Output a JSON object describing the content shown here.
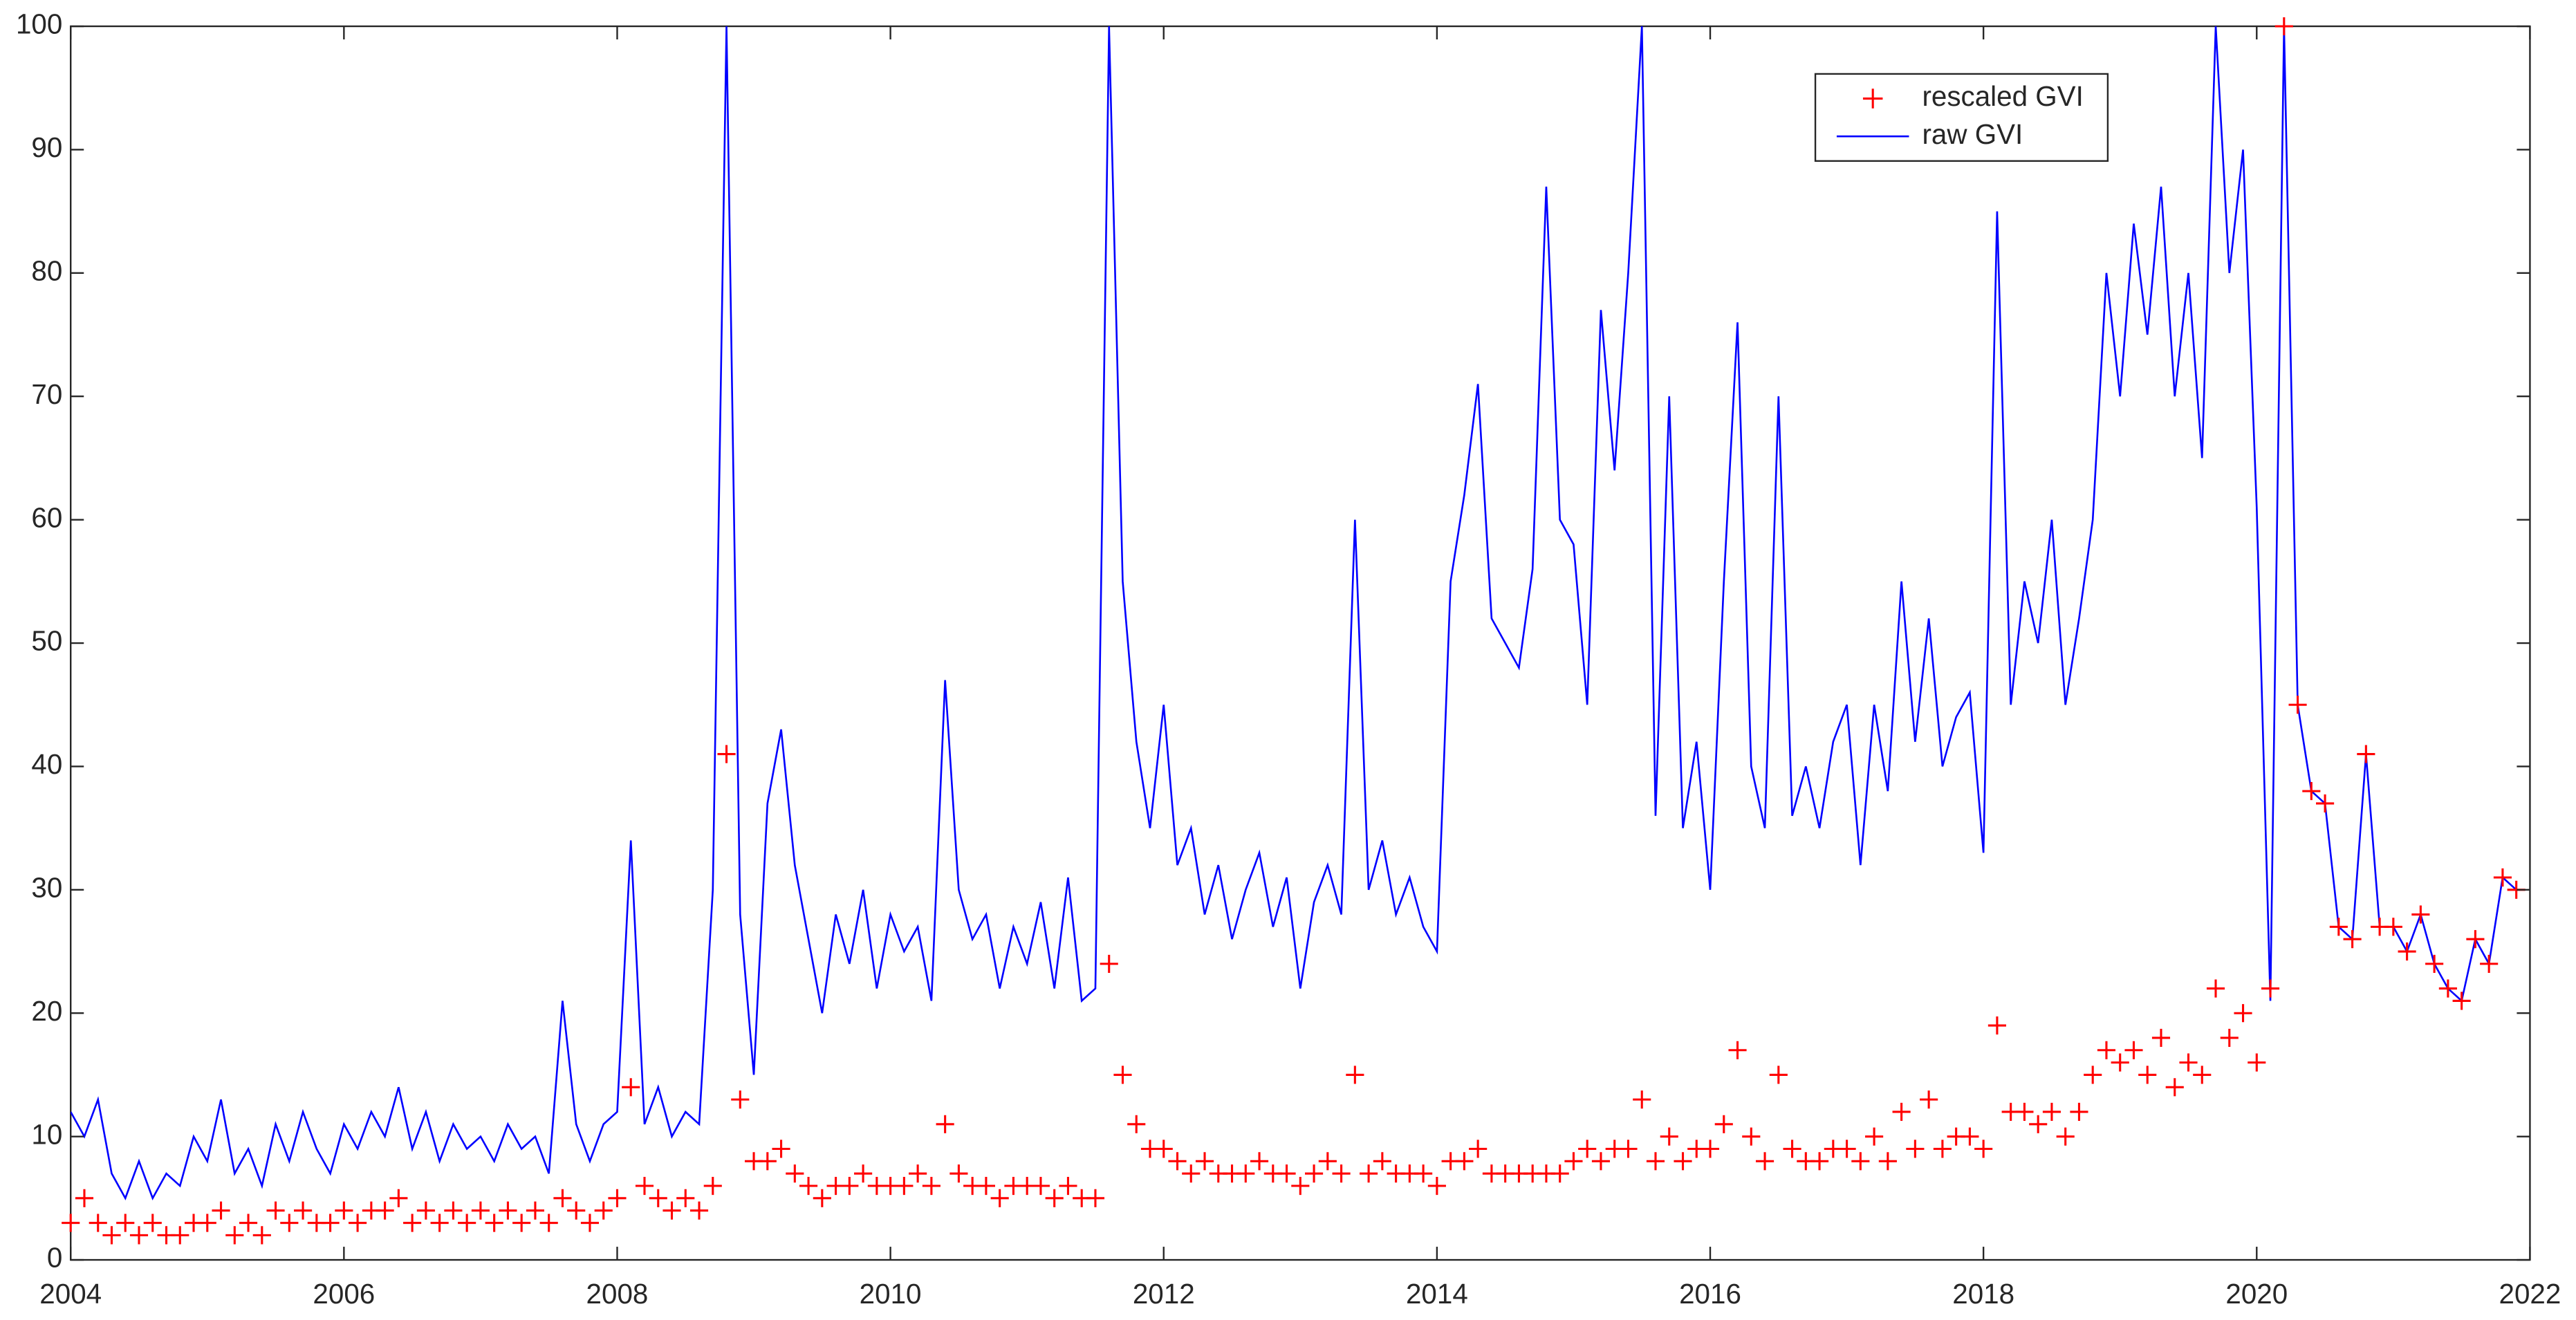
{
  "chart_data": {
    "type": "line",
    "x": [
      2004.0,
      2004.1,
      2004.2,
      2004.3,
      2004.4,
      2004.5,
      2004.6,
      2004.7,
      2004.8,
      2004.9,
      2005.0,
      2005.1,
      2005.2,
      2005.3,
      2005.4,
      2005.5,
      2005.6,
      2005.7,
      2005.8,
      2005.9,
      2006.0,
      2006.1,
      2006.2,
      2006.3,
      2006.4,
      2006.5,
      2006.6,
      2006.7,
      2006.8,
      2006.9,
      2007.0,
      2007.1,
      2007.2,
      2007.3,
      2007.4,
      2007.5,
      2007.6,
      2007.7,
      2007.8,
      2007.9,
      2008.0,
      2008.1,
      2008.2,
      2008.3,
      2008.4,
      2008.5,
      2008.6,
      2008.7,
      2008.8,
      2008.9,
      2009.0,
      2009.1,
      2009.2,
      2009.3,
      2009.4,
      2009.5,
      2009.6,
      2009.7,
      2009.8,
      2009.9,
      2010.0,
      2010.1,
      2010.2,
      2010.3,
      2010.4,
      2010.5,
      2010.6,
      2010.7,
      2010.8,
      2010.9,
      2011.0,
      2011.1,
      2011.2,
      2011.3,
      2011.4,
      2011.5,
      2011.6,
      2011.7,
      2011.8,
      2011.9,
      2012.0,
      2012.1,
      2012.2,
      2012.3,
      2012.4,
      2012.5,
      2012.6,
      2012.7,
      2012.8,
      2012.9,
      2013.0,
      2013.1,
      2013.2,
      2013.3,
      2013.4,
      2013.5,
      2013.6,
      2013.7,
      2013.8,
      2013.9,
      2014.0,
      2014.1,
      2014.2,
      2014.3,
      2014.4,
      2014.5,
      2014.6,
      2014.7,
      2014.8,
      2014.9,
      2015.0,
      2015.1,
      2015.2,
      2015.3,
      2015.4,
      2015.5,
      2015.6,
      2015.7,
      2015.8,
      2015.9,
      2016.0,
      2016.1,
      2016.2,
      2016.3,
      2016.4,
      2016.5,
      2016.6,
      2016.7,
      2016.8,
      2016.9,
      2017.0,
      2017.1,
      2017.2,
      2017.3,
      2017.4,
      2017.5,
      2017.6,
      2017.7,
      2017.8,
      2017.9,
      2018.0,
      2018.1,
      2018.2,
      2018.3,
      2018.4,
      2018.5,
      2018.6,
      2018.7,
      2018.8,
      2018.9,
      2019.0,
      2019.1,
      2019.2,
      2019.3,
      2019.4,
      2019.5,
      2019.6,
      2019.7,
      2019.8,
      2019.9,
      2020.0,
      2020.1,
      2020.2,
      2020.3,
      2020.4,
      2020.5,
      2020.6,
      2020.7,
      2020.8,
      2020.9,
      2021.0,
      2021.1,
      2021.2,
      2021.3,
      2021.4,
      2021.5,
      2021.6,
      2021.7,
      2021.8,
      2021.9
    ],
    "series": [
      {
        "name": "rescaled GVI",
        "color": "#ff0000",
        "type": "scatter",
        "values": [
          3,
          5,
          3,
          2,
          3,
          2,
          3,
          2,
          2,
          3,
          3,
          4,
          2,
          3,
          2,
          4,
          3,
          4,
          3,
          3,
          4,
          3,
          4,
          4,
          5,
          3,
          4,
          3,
          4,
          3,
          4,
          3,
          4,
          3,
          4,
          3,
          5,
          4,
          3,
          4,
          5,
          14,
          6,
          5,
          4,
          5,
          4,
          6,
          41,
          13,
          8,
          8,
          9,
          7,
          6,
          5,
          6,
          6,
          7,
          6,
          6,
          6,
          7,
          6,
          11,
          7,
          6,
          6,
          5,
          6,
          6,
          6,
          5,
          6,
          5,
          5,
          24,
          15,
          11,
          9,
          9,
          8,
          7,
          8,
          7,
          7,
          7,
          8,
          7,
          7,
          6,
          7,
          8,
          7,
          15,
          7,
          8,
          7,
          7,
          7,
          6,
          8,
          8,
          9,
          7,
          7,
          7,
          7,
          7,
          7,
          8,
          9,
          8,
          9,
          9,
          13,
          8,
          10,
          8,
          9,
          9,
          11,
          17,
          10,
          8,
          15,
          9,
          8,
          8,
          9,
          9,
          8,
          10,
          8,
          12,
          9,
          13,
          9,
          10,
          10,
          9,
          19,
          12,
          12,
          11,
          12,
          10,
          12,
          15,
          17,
          16,
          17,
          15,
          18,
          14,
          16,
          15,
          22,
          18,
          20,
          16,
          22,
          100,
          45,
          38,
          37,
          27,
          26,
          41,
          27,
          27,
          25,
          28,
          24,
          22,
          21,
          26,
          24,
          31,
          30
        ]
      },
      {
        "name": "raw GVI",
        "color": "#0000ff",
        "type": "line",
        "values": [
          12,
          10,
          13,
          7,
          5,
          8,
          5,
          7,
          6,
          10,
          8,
          13,
          7,
          9,
          6,
          11,
          8,
          12,
          9,
          7,
          11,
          9,
          12,
          10,
          14,
          9,
          12,
          8,
          11,
          9,
          10,
          8,
          11,
          9,
          10,
          7,
          21,
          11,
          8,
          11,
          12,
          34,
          11,
          14,
          10,
          12,
          11,
          30,
          100,
          28,
          15,
          37,
          43,
          32,
          26,
          20,
          28,
          24,
          30,
          22,
          28,
          25,
          27,
          21,
          47,
          30,
          26,
          28,
          22,
          27,
          24,
          29,
          22,
          31,
          21,
          22,
          100,
          55,
          42,
          35,
          45,
          32,
          35,
          28,
          32,
          26,
          30,
          33,
          27,
          31,
          22,
          29,
          32,
          28,
          60,
          30,
          34,
          28,
          31,
          27,
          25,
          55,
          62,
          71,
          52,
          50,
          48,
          56,
          87,
          60,
          58,
          45,
          77,
          64,
          80,
          100,
          36,
          70,
          35,
          42,
          30,
          55,
          76,
          40,
          35,
          70,
          36,
          40,
          35,
          42,
          45,
          32,
          45,
          38,
          55,
          42,
          52,
          40,
          44,
          46,
          33,
          85,
          45,
          55,
          50,
          60,
          45,
          52,
          60,
          80,
          70,
          84,
          75,
          87,
          70,
          80,
          65,
          100,
          80,
          90,
          61,
          21,
          100,
          45,
          38,
          37,
          27,
          26,
          41,
          27,
          27,
          25,
          28,
          24,
          22,
          21,
          26,
          24,
          31,
          30
        ]
      }
    ],
    "xlim": [
      2004,
      2022
    ],
    "xticks": [
      2004,
      2006,
      2008,
      2010,
      2012,
      2014,
      2016,
      2018,
      2020,
      2022
    ],
    "ylim": [
      0,
      100
    ],
    "yticks": [
      0,
      10,
      20,
      30,
      40,
      50,
      60,
      70,
      80,
      90,
      100
    ],
    "legend": "northeast"
  }
}
